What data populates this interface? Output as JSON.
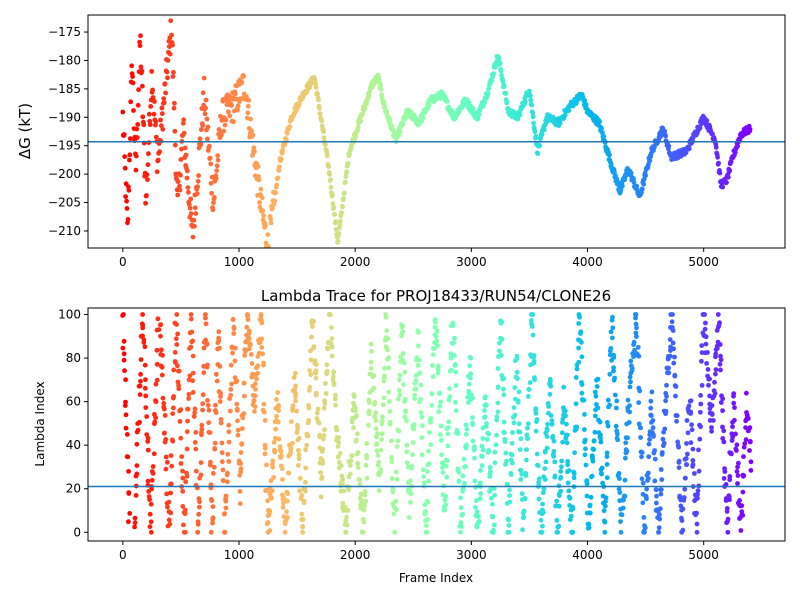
{
  "chart_data": [
    {
      "type": "scatter",
      "title": "",
      "xlabel": "",
      "ylabel": "ΔG (kT)",
      "xlim": [
        -300,
        5700
      ],
      "ylim": [
        -213,
        -172
      ],
      "xticks": [
        0,
        1000,
        2000,
        3000,
        4000,
        5000
      ],
      "yticks": [
        -175,
        -180,
        -185,
        -190,
        -195,
        -200,
        -205,
        -210
      ],
      "xticklabels": [
        "0",
        "1000",
        "2000",
        "3000",
        "4000",
        "5000"
      ],
      "yticklabels": [
        "−175",
        "−180",
        "−185",
        "−190",
        "−195",
        "−200",
        "−205",
        "−210"
      ],
      "hline": -194.3,
      "hline_color": "#1f77b4",
      "colormap": "rainbow (red at frame 0 → violet at last frame)",
      "grid": false,
      "frame_range": [
        0,
        5400
      ],
      "trace_knots": [
        [
          0,
          -190
        ],
        [
          40,
          -210
        ],
        [
          80,
          -180
        ],
        [
          110,
          -200
        ],
        [
          150,
          -176
        ],
        [
          200,
          -205
        ],
        [
          250,
          -182
        ],
        [
          300,
          -198
        ],
        [
          350,
          -188
        ],
        [
          420,
          -174
        ],
        [
          470,
          -206
        ],
        [
          520,
          -192
        ],
        [
          600,
          -211
        ],
        [
          700,
          -186
        ],
        [
          780,
          -205
        ],
        [
          850,
          -190
        ],
        [
          950,
          -188
        ],
        [
          1050,
          -184
        ],
        [
          1100,
          -192
        ],
        [
          1200,
          -207
        ],
        [
          1250,
          -213
        ],
        [
          1350,
          -198
        ],
        [
          1450,
          -190
        ],
        [
          1550,
          -186
        ],
        [
          1650,
          -183
        ],
        [
          1720,
          -192
        ],
        [
          1780,
          -200
        ],
        [
          1850,
          -212
        ],
        [
          1950,
          -196
        ],
        [
          2050,
          -190
        ],
        [
          2150,
          -184
        ],
        [
          2200,
          -183
        ],
        [
          2250,
          -188
        ],
        [
          2350,
          -194
        ],
        [
          2450,
          -189
        ],
        [
          2550,
          -191
        ],
        [
          2650,
          -187
        ],
        [
          2750,
          -186
        ],
        [
          2850,
          -190
        ],
        [
          2950,
          -187
        ],
        [
          3050,
          -190
        ],
        [
          3150,
          -185
        ],
        [
          3230,
          -179
        ],
        [
          3320,
          -189
        ],
        [
          3400,
          -190
        ],
        [
          3500,
          -185
        ],
        [
          3570,
          -196
        ],
        [
          3650,
          -190
        ],
        [
          3750,
          -191
        ],
        [
          3850,
          -188
        ],
        [
          3950,
          -186
        ],
        [
          4000,
          -189
        ],
        [
          4100,
          -191
        ],
        [
          4200,
          -198
        ],
        [
          4280,
          -203
        ],
        [
          4350,
          -199
        ],
        [
          4450,
          -204
        ],
        [
          4550,
          -196
        ],
        [
          4650,
          -192
        ],
        [
          4720,
          -197
        ],
        [
          4850,
          -196
        ],
        [
          4950,
          -192
        ],
        [
          5000,
          -190
        ],
        [
          5100,
          -194
        ],
        [
          5150,
          -202
        ],
        [
          5200,
          -201
        ],
        [
          5250,
          -197
        ],
        [
          5320,
          -193
        ],
        [
          5400,
          -192
        ]
      ]
    },
    {
      "type": "scatter",
      "title": "Lambda Trace for PROJ18433/RUN54/CLONE26",
      "xlabel": "Frame Index",
      "ylabel": "Lambda Index",
      "xlim": [
        -300,
        5700
      ],
      "ylim": [
        -4,
        103
      ],
      "xticks": [
        0,
        1000,
        2000,
        3000,
        4000,
        5000
      ],
      "yticks": [
        0,
        20,
        40,
        60,
        80,
        100
      ],
      "xticklabels": [
        "0",
        "1000",
        "2000",
        "3000",
        "4000",
        "5000"
      ],
      "yticklabels": [
        "0",
        "20",
        "40",
        "60",
        "80",
        "100"
      ],
      "hline": 21,
      "hline_color": "#1f77b4",
      "colormap": "rainbow (red at frame 0 → violet at last frame)",
      "grid": false,
      "frame_range": [
        0,
        5400
      ],
      "sweeps": [
        [
          0,
          100,
          60
        ],
        [
          100,
          0,
          70
        ],
        [
          170,
          100,
          70
        ],
        [
          240,
          0,
          70
        ],
        [
          320,
          100,
          80
        ],
        [
          400,
          0,
          60
        ],
        [
          460,
          100,
          70
        ],
        [
          530,
          0,
          60
        ],
        [
          590,
          100,
          60
        ],
        [
          650,
          0,
          60
        ],
        [
          710,
          100,
          60
        ],
        [
          770,
          0,
          50
        ],
        [
          820,
          95,
          60
        ],
        [
          880,
          0,
          70
        ],
        [
          950,
          100,
          60
        ],
        [
          1010,
          20,
          60
        ],
        [
          1070,
          100,
          60
        ],
        [
          1130,
          60,
          60
        ],
        [
          1190,
          100,
          60
        ],
        [
          1250,
          0,
          80
        ],
        [
          1330,
          60,
          70
        ],
        [
          1400,
          0,
          80
        ],
        [
          1480,
          70,
          70
        ],
        [
          1550,
          0,
          80
        ],
        [
          1630,
          100,
          80
        ],
        [
          1710,
          20,
          70
        ],
        [
          1780,
          100,
          70
        ],
        [
          1850,
          40,
          70
        ],
        [
          1920,
          0,
          70
        ],
        [
          1990,
          60,
          80
        ],
        [
          2070,
          0,
          70
        ],
        [
          2140,
          80,
          70
        ],
        [
          2210,
          20,
          60
        ],
        [
          2270,
          100,
          70
        ],
        [
          2340,
          0,
          60
        ],
        [
          2400,
          100,
          70
        ],
        [
          2470,
          10,
          70
        ],
        [
          2540,
          90,
          70
        ],
        [
          2610,
          0,
          80
        ],
        [
          2690,
          100,
          80
        ],
        [
          2770,
          10,
          70
        ],
        [
          2840,
          100,
          70
        ],
        [
          2910,
          0,
          80
        ],
        [
          2990,
          80,
          60
        ],
        [
          3050,
          0,
          70
        ],
        [
          3120,
          60,
          70
        ],
        [
          3190,
          0,
          60
        ],
        [
          3250,
          100,
          70
        ],
        [
          3320,
          0,
          70
        ],
        [
          3390,
          80,
          60
        ],
        [
          3450,
          0,
          70
        ],
        [
          3520,
          100,
          80
        ],
        [
          3600,
          0,
          80
        ],
        [
          3680,
          70,
          60
        ],
        [
          3740,
          0,
          60
        ],
        [
          3800,
          60,
          70
        ],
        [
          3870,
          0,
          60
        ],
        [
          3930,
          100,
          80
        ],
        [
          4010,
          0,
          70
        ],
        [
          4080,
          70,
          70
        ],
        [
          4150,
          0,
          60
        ],
        [
          4210,
          100,
          80
        ],
        [
          4290,
          0,
          70
        ],
        [
          4360,
          60,
          60
        ],
        [
          4420,
          100,
          70
        ],
        [
          4490,
          0,
          60
        ],
        [
          4550,
          60,
          60
        ],
        [
          4610,
          0,
          60
        ],
        [
          4670,
          60,
          60
        ],
        [
          4730,
          100,
          80
        ],
        [
          4810,
          0,
          70
        ],
        [
          4880,
          60,
          60
        ],
        [
          4940,
          0,
          60
        ],
        [
          5000,
          100,
          70
        ],
        [
          5070,
          50,
          60
        ],
        [
          5130,
          100,
          70
        ],
        [
          5200,
          0,
          60
        ],
        [
          5260,
          60,
          60
        ],
        [
          5320,
          0,
          50
        ],
        [
          5370,
          60,
          40
        ]
      ]
    }
  ]
}
